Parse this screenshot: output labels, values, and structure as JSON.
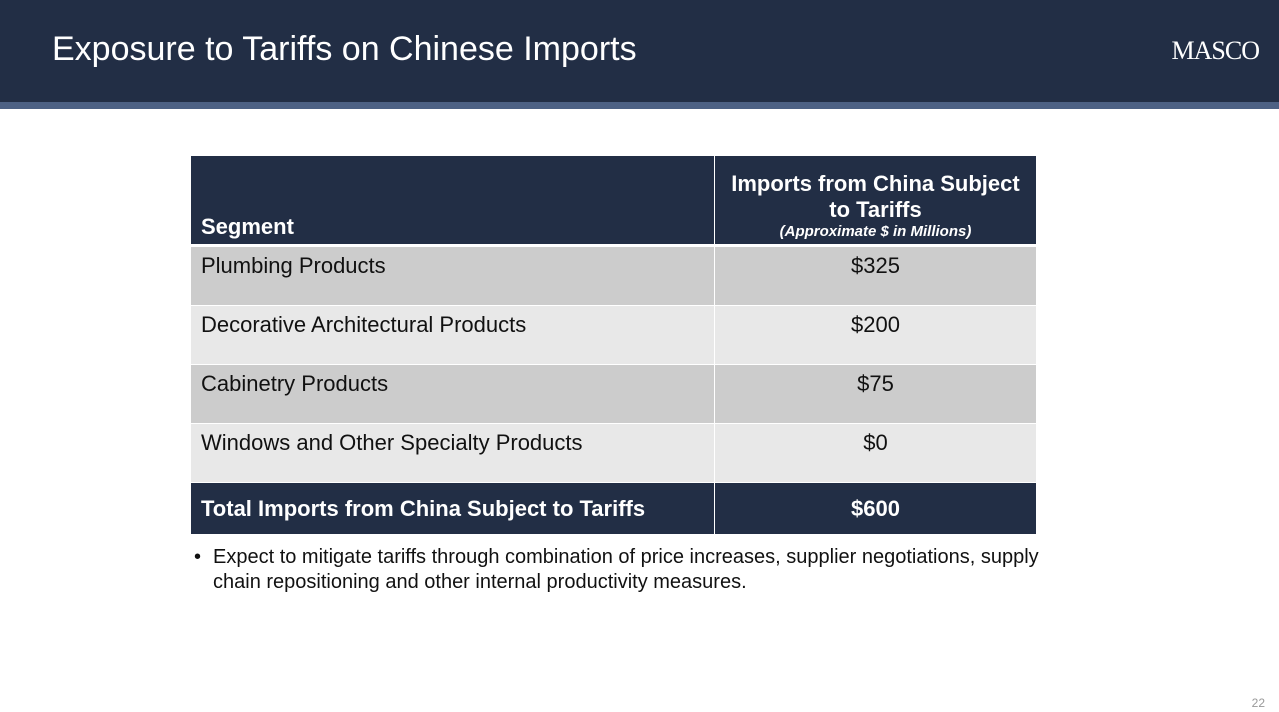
{
  "header": {
    "title": "Exposure to Tariffs on Chinese Imports",
    "logo": "MASCO"
  },
  "table": {
    "columns": [
      "Segment",
      "Imports from China Subject to Tariffs"
    ],
    "column_note": "(Approximate $ in Millions)",
    "rows": [
      [
        "Plumbing Products",
        "$325"
      ],
      [
        "Decorative Architectural Products",
        "$200"
      ],
      [
        "Cabinetry Products",
        "$75"
      ],
      [
        "Windows and Other Specialty Products",
        "$0"
      ]
    ],
    "total": [
      "Total Imports from China Subject to Tariffs",
      "$600"
    ]
  },
  "bullets": [
    "Expect to mitigate tariffs through combination of price increases, supplier negotiations, supply chain repositioning and other internal productivity measures."
  ],
  "page_number": "22"
}
